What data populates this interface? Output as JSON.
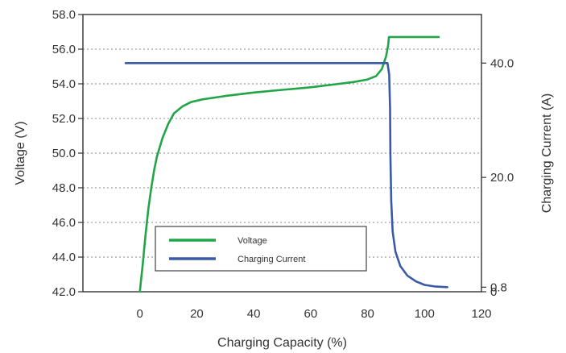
{
  "chart_data": {
    "type": "line",
    "xlabel": "Charging Capacity (%)",
    "ylabel_left": "Voltage (V)",
    "ylabel_right": "Charging Current (A)",
    "xlim": [
      -20,
      120
    ],
    "ylim_left": [
      42.0,
      58.0
    ],
    "ylim_right": [
      0,
      48.5
    ],
    "x_ticks": [
      {
        "value": 0,
        "label": "0"
      },
      {
        "value": 20,
        "label": "20"
      },
      {
        "value": 40,
        "label": "40"
      },
      {
        "value": 60,
        "label": "60"
      },
      {
        "value": 80,
        "label": "80"
      },
      {
        "value": 100,
        "label": "100"
      },
      {
        "value": 120,
        "label": "120"
      }
    ],
    "y_left_ticks": [
      {
        "value": 42.0,
        "label": "42.0"
      },
      {
        "value": 44.0,
        "label": "44.0"
      },
      {
        "value": 46.0,
        "label": "46.0"
      },
      {
        "value": 48.0,
        "label": "48.0"
      },
      {
        "value": 50.0,
        "label": "50.0"
      },
      {
        "value": 52.0,
        "label": "52.0"
      },
      {
        "value": 54.0,
        "label": "54.0"
      },
      {
        "value": 56.0,
        "label": "56.0"
      },
      {
        "value": 58.0,
        "label": "58.0"
      }
    ],
    "y_right_ticks": [
      {
        "value": 0,
        "label": "0"
      },
      {
        "value": 0.8,
        "label": "0.8"
      },
      {
        "value": 20.0,
        "label": "20.0"
      },
      {
        "value": 40.0,
        "label": "40.0"
      }
    ],
    "grid": true,
    "legend_position": "bottom-left",
    "series": [
      {
        "name": "Voltage",
        "axis": "left",
        "color": "#22a548",
        "points": [
          [
            0,
            42.0
          ],
          [
            1,
            43.6
          ],
          [
            2,
            45.3
          ],
          [
            3,
            46.8
          ],
          [
            4,
            48.0
          ],
          [
            5,
            49.0
          ],
          [
            6,
            49.8
          ],
          [
            8,
            50.9
          ],
          [
            10,
            51.7
          ],
          [
            12,
            52.3
          ],
          [
            15,
            52.7
          ],
          [
            18,
            52.95
          ],
          [
            22,
            53.1
          ],
          [
            30,
            53.3
          ],
          [
            40,
            53.5
          ],
          [
            50,
            53.65
          ],
          [
            60,
            53.8
          ],
          [
            70,
            54.0
          ],
          [
            75,
            54.1
          ],
          [
            80,
            54.25
          ],
          [
            83,
            54.45
          ],
          [
            85,
            54.85
          ],
          [
            86.5,
            55.6
          ],
          [
            87.2,
            56.2
          ],
          [
            87.5,
            56.7
          ],
          [
            105,
            56.7
          ]
        ]
      },
      {
        "name": "Charging Current",
        "axis": "right",
        "color": "#3a5aa8",
        "points": [
          [
            -5,
            40.0
          ],
          [
            87,
            40.0
          ],
          [
            87.6,
            38.0
          ],
          [
            87.9,
            32.0
          ],
          [
            88.0,
            24.0
          ],
          [
            88.3,
            16.0
          ],
          [
            88.8,
            10.5
          ],
          [
            89.8,
            7.0
          ],
          [
            91.5,
            4.5
          ],
          [
            94,
            2.8
          ],
          [
            97,
            1.8
          ],
          [
            100,
            1.2
          ],
          [
            104,
            0.9
          ],
          [
            108,
            0.8
          ]
        ]
      }
    ]
  }
}
